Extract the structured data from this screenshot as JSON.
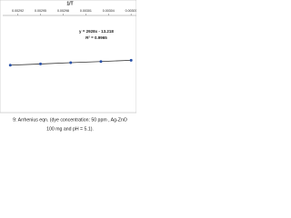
{
  "chart_data": {
    "type": "scatter",
    "x_label": "1/T",
    "x": [
      0.00291,
      0.00295,
      0.00299,
      0.00303,
      0.00307
    ],
    "series": [
      {
        "color": "#2a52a8",
        "values": [
          -4.69,
          -4.58,
          -4.46,
          -4.35,
          -4.23
        ]
      }
    ],
    "line_color": "#333333",
    "xlim": [
      0.0029,
      0.003077
    ],
    "ylim": [
      -9,
      0
    ],
    "xticks": [
      0.00292,
      0.00295,
      0.00298,
      0.00301,
      0.00304,
      0.00307
    ],
    "equation": "y = 2928x - 13.218",
    "r_squared": "R² = 0.9965",
    "caption": [
      "9: Arrhenius eqn. (dye concentration: 50 ppm , Ag-ZnO",
      "100 mg and pH = 5.1)."
    ]
  }
}
